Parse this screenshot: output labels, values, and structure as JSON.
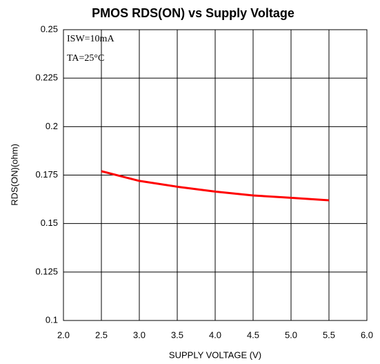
{
  "chart_data": {
    "type": "line",
    "title": "PMOS RDS(ON) vs Supply Voltage",
    "x_label": "SUPPLY VOLTAGE (V)",
    "y_label": "RDS(ON)(ohm)",
    "annotations": [
      "ISW=10mA",
      "TA=25°C"
    ],
    "x": [
      2.5,
      3.0,
      3.5,
      4.0,
      4.5,
      5.0,
      5.5
    ],
    "series": [
      {
        "name": "RDS(ON)",
        "color": "#ff0000",
        "values": [
          0.177,
          0.172,
          0.169,
          0.1665,
          0.1645,
          0.1633,
          0.162
        ]
      }
    ],
    "xlim": [
      2.0,
      6.0
    ],
    "xticks": [
      {
        "value": 2,
        "label": "2.0"
      },
      {
        "value": 2.5,
        "label": "2.5"
      },
      {
        "value": 3,
        "label": "3.0"
      },
      {
        "value": 3.5,
        "label": "3.5"
      },
      {
        "value": 4,
        "label": "4.0"
      },
      {
        "value": 4.5,
        "label": "4.5"
      },
      {
        "value": 5,
        "label": "5.0"
      },
      {
        "value": 5.5,
        "label": "5.5"
      },
      {
        "value": 6,
        "label": "6.0"
      }
    ],
    "ylim": [
      0.1,
      0.25
    ],
    "yticks": [
      0.1,
      0.125,
      0.15,
      0.175,
      0.2,
      0.225,
      0.25
    ],
    "grid": true
  }
}
